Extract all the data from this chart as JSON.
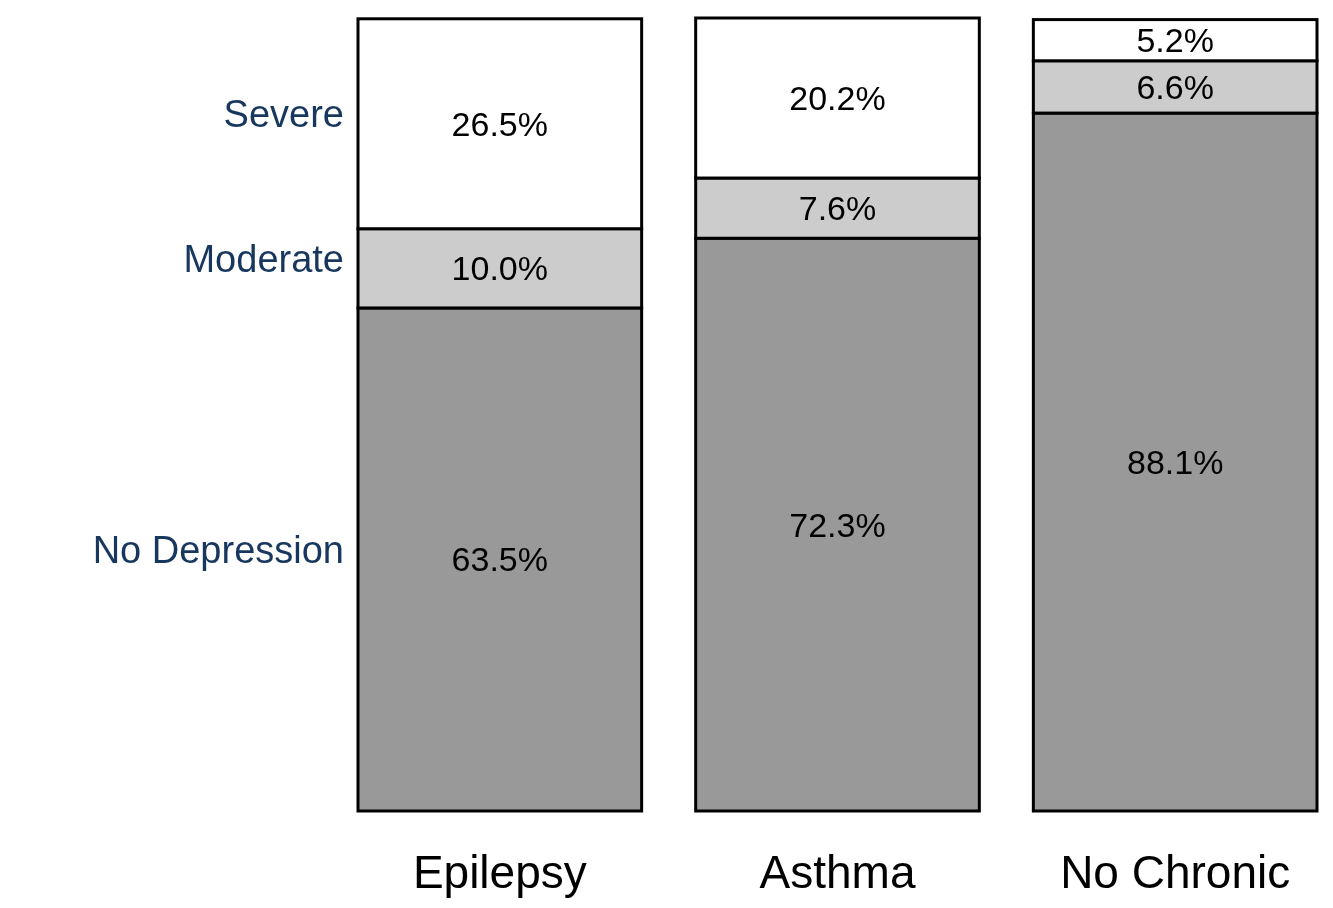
{
  "chart_data": {
    "type": "bar",
    "stacked": true,
    "categories": [
      "Epilepsy",
      "Asthma",
      "No Chronic"
    ],
    "legend": "left",
    "series": [
      {
        "name": "No Depression",
        "color": "#999999",
        "values": [
          63.5,
          72.3,
          88.1
        ],
        "value_labels": [
          "63.5%",
          "72.3%",
          "88.1%"
        ]
      },
      {
        "name": "Moderate",
        "color": "#cccccc",
        "values": [
          10.0,
          7.6,
          6.6
        ],
        "value_labels": [
          "10.0%",
          "7.6%",
          "6.6%"
        ]
      },
      {
        "name": "Severe",
        "color": "#ffffff",
        "values": [
          26.5,
          20.2,
          5.2
        ],
        "value_labels": [
          "26.5%",
          "20.2%",
          "5.2%"
        ]
      }
    ]
  }
}
